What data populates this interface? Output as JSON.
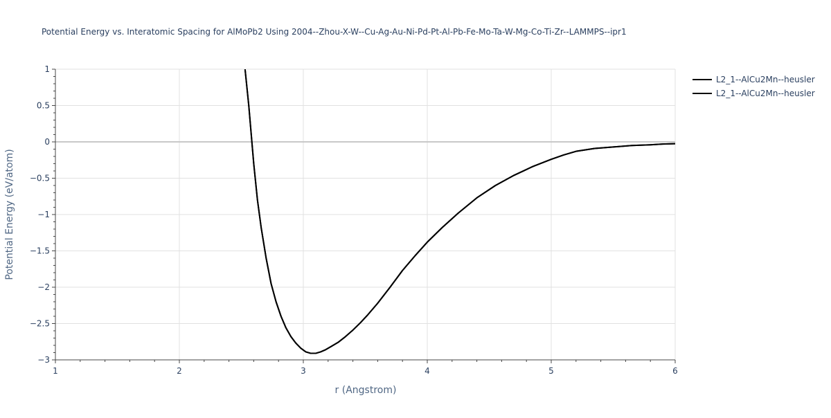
{
  "chart_data": {
    "type": "line",
    "title": "Potential Energy vs. Interatomic Spacing for AlMoPb2 Using 2004--Zhou-X-W--Cu-Ag-Au-Ni-Pd-Pt-Al-Pb-Fe-Mo-Ta-W-Mg-Co-Ti-Zr--LAMMPS--ipr1",
    "xlabel": "r (Angstrom)",
    "ylabel": "Potential Energy (eV/atom)",
    "xlim": [
      1,
      6
    ],
    "ylim": [
      -3,
      1
    ],
    "x_ticks": [
      1,
      2,
      3,
      4,
      5,
      6
    ],
    "x_tick_labels": [
      "1",
      "2",
      "3",
      "4",
      "5",
      "6"
    ],
    "y_ticks": [
      1,
      0.5,
      0,
      -0.5,
      -1,
      -1.5,
      -2,
      -2.5,
      -3
    ],
    "y_tick_labels": [
      "1",
      "0.5",
      "0",
      "−0.5",
      "−1",
      "−1.5",
      "−2",
      "−2.5",
      "−3"
    ],
    "grid": true,
    "legend_position": "top-right",
    "series": [
      {
        "name": "L2_1--AlCu2Mn--heusler",
        "color": "#000000",
        "x": [
          2.53,
          2.56,
          2.58,
          2.6,
          2.63,
          2.66,
          2.7,
          2.74,
          2.78,
          2.82,
          2.86,
          2.9,
          2.94,
          2.98,
          3.02,
          3.06,
          3.1,
          3.14,
          3.18,
          3.22,
          3.28,
          3.34,
          3.4,
          3.46,
          3.52,
          3.6,
          3.7,
          3.8,
          3.9,
          4.0,
          4.12,
          4.25,
          4.4,
          4.55,
          4.7,
          4.85,
          5.0,
          5.1,
          5.2,
          5.35,
          5.5,
          5.65,
          5.8,
          5.9,
          6.0
        ],
        "y": [
          1.0,
          0.5,
          0.1,
          -0.3,
          -0.8,
          -1.18,
          -1.6,
          -1.95,
          -2.2,
          -2.4,
          -2.56,
          -2.68,
          -2.77,
          -2.84,
          -2.89,
          -2.91,
          -2.91,
          -2.89,
          -2.86,
          -2.82,
          -2.76,
          -2.68,
          -2.59,
          -2.49,
          -2.38,
          -2.22,
          -2.0,
          -1.77,
          -1.57,
          -1.38,
          -1.18,
          -0.98,
          -0.77,
          -0.6,
          -0.46,
          -0.34,
          -0.24,
          -0.18,
          -0.13,
          -0.09,
          -0.07,
          -0.05,
          -0.04,
          -0.03,
          -0.025
        ]
      },
      {
        "name": "L2_1--AlCu2Mn--heusler",
        "color": "#000000",
        "x": [
          2.53,
          2.56,
          2.58,
          2.6,
          2.63,
          2.66,
          2.7,
          2.74,
          2.78,
          2.82,
          2.86,
          2.9,
          2.94,
          2.98,
          3.02,
          3.06,
          3.1,
          3.14,
          3.18,
          3.22,
          3.28,
          3.34,
          3.4,
          3.46,
          3.52,
          3.6,
          3.7,
          3.8,
          3.9,
          4.0,
          4.12,
          4.25,
          4.4,
          4.55,
          4.7,
          4.85,
          5.0,
          5.1,
          5.2,
          5.35,
          5.5,
          5.65,
          5.8,
          5.9,
          6.0
        ],
        "y": [
          1.0,
          0.5,
          0.1,
          -0.3,
          -0.8,
          -1.18,
          -1.6,
          -1.95,
          -2.2,
          -2.4,
          -2.56,
          -2.68,
          -2.77,
          -2.84,
          -2.89,
          -2.91,
          -2.91,
          -2.89,
          -2.86,
          -2.82,
          -2.76,
          -2.68,
          -2.59,
          -2.49,
          -2.38,
          -2.22,
          -2.0,
          -1.77,
          -1.57,
          -1.38,
          -1.18,
          -0.98,
          -0.77,
          -0.6,
          -0.46,
          -0.34,
          -0.24,
          -0.18,
          -0.13,
          -0.09,
          -0.07,
          -0.05,
          -0.04,
          -0.03,
          -0.025
        ]
      }
    ]
  }
}
